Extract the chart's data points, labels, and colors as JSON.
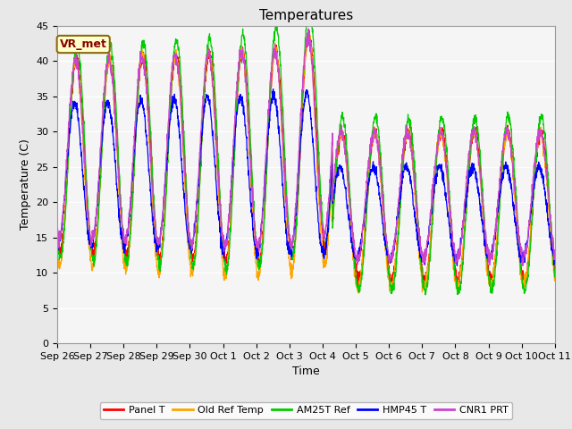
{
  "title": "Temperatures",
  "xlabel": "Time",
  "ylabel": "Temperature (C)",
  "annotation_text": "VR_met",
  "annotation_color": "#8B0000",
  "annotation_bg": "#FFFFCC",
  "annotation_border": "#8B6914",
  "ylim": [
    0,
    45
  ],
  "xtick_labels": [
    "Sep 26",
    "Sep 27",
    "Sep 28",
    "Sep 29",
    "Sep 30",
    "Oct 1",
    "Oct 2",
    "Oct 3",
    "Oct 4",
    "Oct 5",
    "Oct 6",
    "Oct 7",
    "Oct 8",
    "Oct 9",
    "Oct 10",
    "Oct 11"
  ],
  "bg_color": "#E8E8E8",
  "plot_bg": "#DCDCDC",
  "plot_inner_bg": "#F5F5F5",
  "legend_entries": [
    "Panel T",
    "Old Ref Temp",
    "AM25T Ref",
    "HMP45 T",
    "CNR1 PRT"
  ],
  "legend_colors": [
    "#FF0000",
    "#FFA500",
    "#00CC00",
    "#0000FF",
    "#CC44CC"
  ],
  "series_colors": [
    "#FF0000",
    "#FFA500",
    "#00CC00",
    "#0000FF",
    "#CC44CC"
  ],
  "n_days": 15,
  "pts_per_day": 144,
  "title_fontsize": 11,
  "axis_fontsize": 9,
  "tick_fontsize": 8,
  "legend_fontsize": 8
}
